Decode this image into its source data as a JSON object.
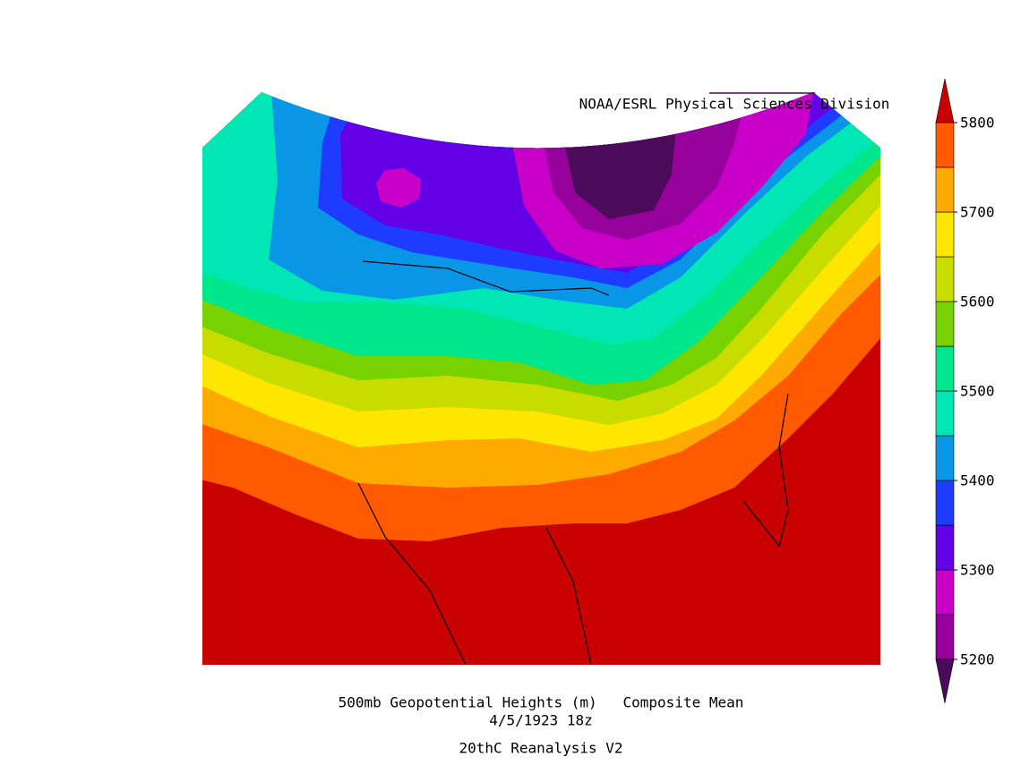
{
  "header": {
    "credit": "NOAA/ESRL Physical Sciences Division"
  },
  "chart_data": {
    "type": "colorbar",
    "levels": [
      5200,
      5250,
      5300,
      5350,
      5400,
      5450,
      5500,
      5550,
      5600,
      5650,
      5700,
      5750,
      5800
    ],
    "colors": [
      "#4b0a5a",
      "#96009b",
      "#c800c8",
      "#6400e6",
      "#1e3cff",
      "#0a96e6",
      "#00e6b4",
      "#00e68c",
      "#78d200",
      "#c8dc00",
      "#ffe600",
      "#ffaa00",
      "#ff5a00",
      "#c80000"
    ],
    "ylim": [
      5200,
      5800
    ],
    "yticks": [
      5200,
      5300,
      5400,
      5500,
      5600,
      5700,
      5800
    ]
  },
  "footer": {
    "title": "500mb Geopotential Heights (m)   Composite Mean",
    "date": "4/5/1923 18z",
    "source": "20thC Reanalysis V2"
  }
}
